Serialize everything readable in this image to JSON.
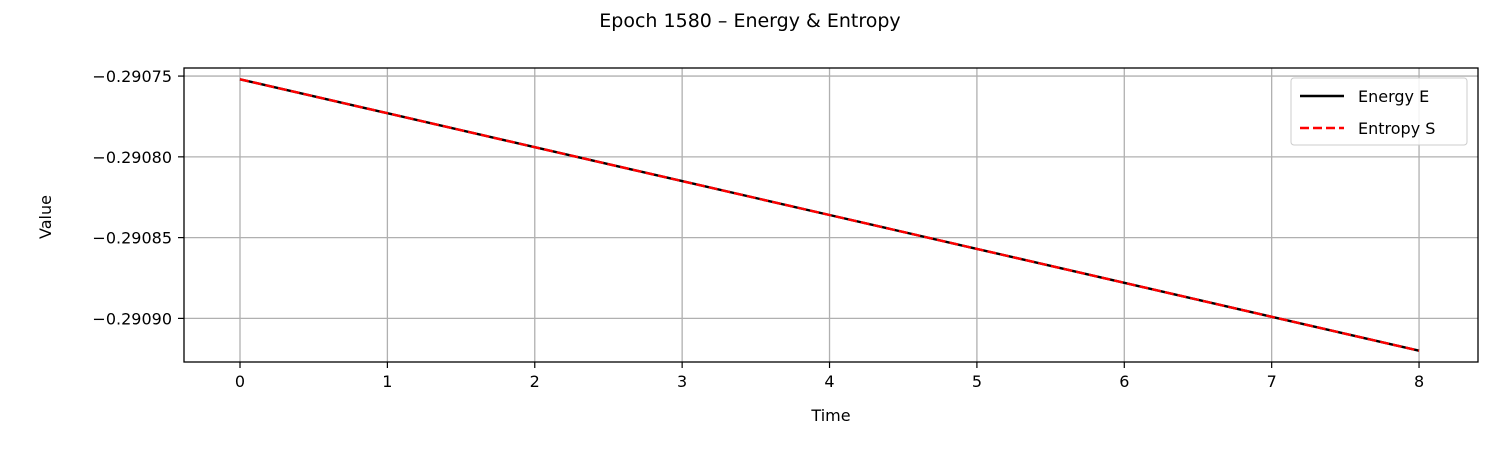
{
  "chart_data": {
    "type": "line",
    "title": "Epoch 1580 – Energy & Entropy",
    "xlabel": "Time",
    "ylabel": "Value",
    "x": [
      0,
      1,
      2,
      3,
      4,
      5,
      6,
      7,
      8
    ],
    "xlim": [
      -0.38,
      8.4
    ],
    "ylim": [
      -0.290927,
      -0.290745
    ],
    "x_ticks": [
      0,
      1,
      2,
      3,
      4,
      5,
      6,
      7,
      8
    ],
    "x_tick_labels": [
      "0",
      "1",
      "2",
      "3",
      "4",
      "5",
      "6",
      "7",
      "8"
    ],
    "y_ticks": [
      -0.29075,
      -0.2908,
      -0.29085,
      -0.2909
    ],
    "y_tick_labels": [
      "−0.29075",
      "−0.29080",
      "−0.29085",
      "−0.29090"
    ],
    "grid": true,
    "legend_position": "top-right",
    "series": [
      {
        "name": "Energy E",
        "color": "#000000",
        "style": "solid",
        "values": [
          -0.290752,
          -0.290773,
          -0.290794,
          -0.290815,
          -0.290836,
          -0.290857,
          -0.290878,
          -0.290899,
          -0.29092
        ]
      },
      {
        "name": "Entropy S",
        "color": "#ff0000",
        "style": "dashed",
        "values": [
          -0.290752,
          -0.290773,
          -0.290794,
          -0.290815,
          -0.290836,
          -0.290857,
          -0.290878,
          -0.290899,
          -0.29092
        ]
      }
    ]
  }
}
